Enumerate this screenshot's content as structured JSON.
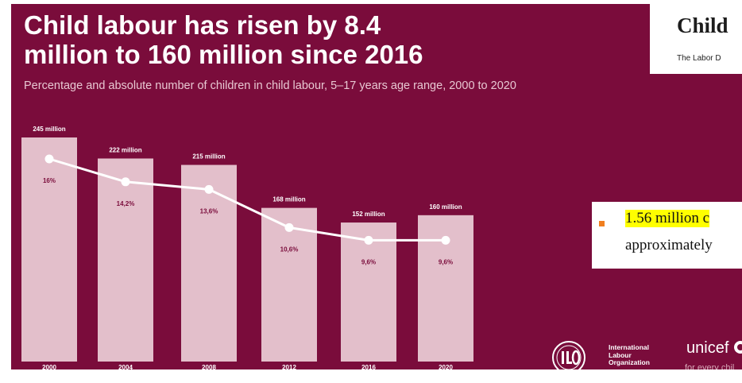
{
  "title_lines": [
    "Child labour has risen by 8.4",
    "million to 160 million since 2016"
  ],
  "subtitle": "Percentage and absolute number of children in child labour, 5–17 years age range, 2000 to 2020",
  "colors": {
    "background": "#7a0c3b",
    "bar": "#e3bfcb",
    "line": "#ffffff",
    "bullet": "#f07f1f",
    "highlight": "#ffff00"
  },
  "chart_data": {
    "type": "bar",
    "categories": [
      "2000",
      "2004",
      "2008",
      "2012",
      "2016",
      "2020"
    ],
    "series": [
      {
        "values": [
          245,
          222,
          215,
          168,
          152,
          160
        ],
        "labels": [
          "245 million",
          "222 million",
          "215 million",
          "168 million",
          "152  million",
          "160 million"
        ]
      },
      {
        "type": "line",
        "values": [
          16,
          14.2,
          13.6,
          10.6,
          9.6,
          9.6
        ],
        "labels": [
          "16%",
          "14,2%",
          "13,6%",
          "10,6%",
          "9,6%",
          "9,6%"
        ]
      }
    ],
    "title": "Child labour has risen by 8.4 million to 160 million since 2016",
    "subtitle": "Percentage and absolute number of children in child labour, 5–17 years age range, 2000 to 2020",
    "grid": false
  },
  "logos": {
    "ilo_lines": [
      "International",
      "Labour",
      "Organization"
    ],
    "unicef_name": "unicef",
    "unicef_tagline": "for every chil",
    "unicef_icon": "globe-icon"
  },
  "overlay_header": {
    "title": "Child",
    "subtitle": "The Labor D"
  },
  "overlay_fact": {
    "bullet_icon": "square-bullet-icon",
    "line1": "1.56 million c",
    "line2": "approximately"
  }
}
